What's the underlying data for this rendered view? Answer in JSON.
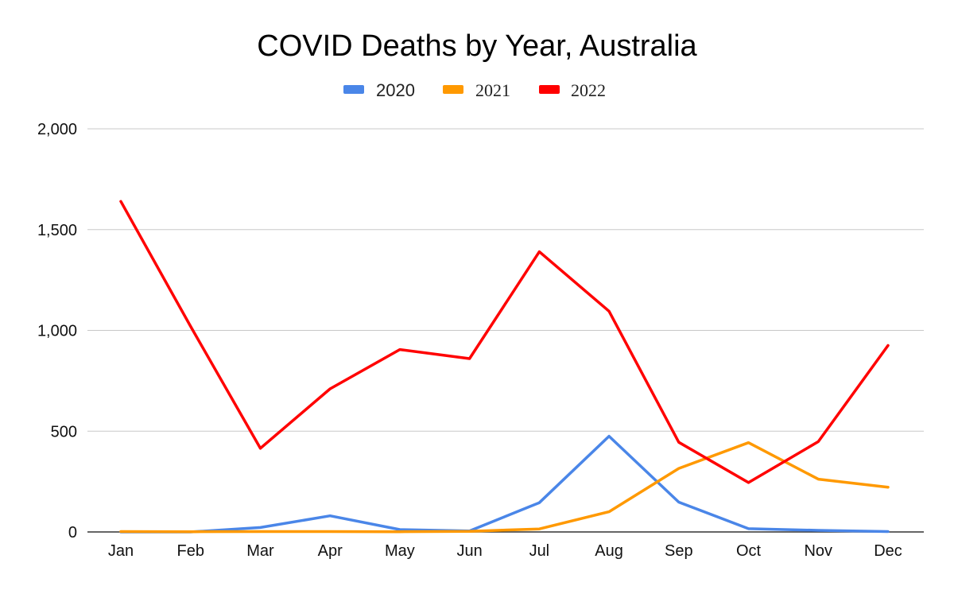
{
  "chart_data": {
    "type": "line",
    "title": "COVID Deaths by Year, Australia",
    "xlabel": "",
    "ylabel": "",
    "categories": [
      "Jan",
      "Feb",
      "Mar",
      "Apr",
      "May",
      "Jun",
      "Jul",
      "Aug",
      "Sep",
      "Oct",
      "Nov",
      "Dec"
    ],
    "ylim": [
      0,
      2000
    ],
    "yticks": [
      0,
      500,
      1000,
      1500,
      2000
    ],
    "ytick_labels": [
      "0",
      "500",
      "1,000",
      "1,500",
      "2,000"
    ],
    "grid": true,
    "legend_position": "top-center",
    "series": [
      {
        "name": "2020",
        "color": "#4a86e8",
        "values": [
          0,
          0,
          22,
          80,
          12,
          5,
          145,
          475,
          148,
          16,
          8,
          2
        ]
      },
      {
        "name": "2021",
        "color": "#ff9900",
        "values": [
          2,
          1,
          2,
          2,
          1,
          3,
          15,
          100,
          315,
          443,
          262,
          222
        ]
      },
      {
        "name": "2022",
        "color": "#ff0000",
        "values": [
          1640,
          1020,
          415,
          710,
          905,
          860,
          1390,
          1095,
          445,
          245,
          448,
          925
        ]
      }
    ]
  }
}
